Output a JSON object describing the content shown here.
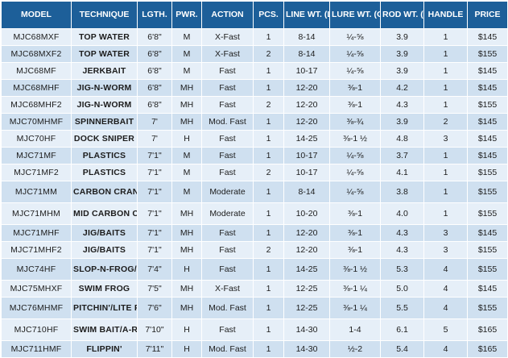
{
  "headers": {
    "model": "MODEL",
    "technique": "TECHNIQUE",
    "length": "LGTH.",
    "power": "PWR.",
    "action": "ACTION",
    "pieces": "PCS.",
    "line_wt": "LINE WT. (LB.)",
    "lure_wt": "LURE WT. (OZ.)",
    "rod_wt": "ROD WT. (OZ.)",
    "handle": "HANDLE",
    "price": "PRICE"
  },
  "rows": [
    {
      "model": "MJC68MXF",
      "technique": "TOP WATER",
      "length": "6'8\"",
      "power": "M",
      "action": "X-Fast",
      "pieces": "1",
      "line_wt": "8-14",
      "lure_wt": "¼-⅝",
      "rod_wt": "3.9",
      "handle": "1",
      "price": "$145"
    },
    {
      "model": "MJC68MXF2",
      "technique": "TOP WATER",
      "length": "6'8\"",
      "power": "M",
      "action": "X-Fast",
      "pieces": "2",
      "line_wt": "8-14",
      "lure_wt": "¼-⅝",
      "rod_wt": "3.9",
      "handle": "1",
      "price": "$155"
    },
    {
      "model": "MJC68MF",
      "technique": "JERKBAIT",
      "length": "6'8\"",
      "power": "M",
      "action": "Fast",
      "pieces": "1",
      "line_wt": "10-17",
      "lure_wt": "¼-⅝",
      "rod_wt": "3.9",
      "handle": "1",
      "price": "$145"
    },
    {
      "model": "MJC68MHF",
      "technique": "JIG-N-WORM",
      "length": "6'8\"",
      "power": "MH",
      "action": "Fast",
      "pieces": "1",
      "line_wt": "12-20",
      "lure_wt": "⅜-1",
      "rod_wt": "4.2",
      "handle": "1",
      "price": "$145"
    },
    {
      "model": "MJC68MHF2",
      "technique": "JIG-N-WORM",
      "length": "6'8\"",
      "power": "MH",
      "action": "Fast",
      "pieces": "2",
      "line_wt": "12-20",
      "lure_wt": "⅜-1",
      "rod_wt": "4.3",
      "handle": "1",
      "price": "$155"
    },
    {
      "model": "MJC70MHMF",
      "technique": "SPINNERBAIT",
      "length": "7'",
      "power": "MH",
      "action": "Mod. Fast",
      "pieces": "1",
      "line_wt": "12-20",
      "lure_wt": "⅜-¾",
      "rod_wt": "3.9",
      "handle": "2",
      "price": "$145"
    },
    {
      "model": "MJC70HF",
      "technique": "DOCK SNIPER",
      "length": "7'",
      "power": "H",
      "action": "Fast",
      "pieces": "1",
      "line_wt": "14-25",
      "lure_wt": "⅜-1 ½",
      "rod_wt": "4.8",
      "handle": "3",
      "price": "$145"
    },
    {
      "model": "MJC71MF",
      "technique": "PLASTICS",
      "length": "7'1\"",
      "power": "M",
      "action": "Fast",
      "pieces": "1",
      "line_wt": "10-17",
      "lure_wt": "¼-⅝",
      "rod_wt": "3.7",
      "handle": "1",
      "price": "$145"
    },
    {
      "model": "MJC71MF2",
      "technique": "PLASTICS",
      "length": "7'1\"",
      "power": "M",
      "action": "Fast",
      "pieces": "2",
      "line_wt": "10-17",
      "lure_wt": "¼-⅝",
      "rod_wt": "4.1",
      "handle": "1",
      "price": "$155"
    },
    {
      "model": "MJC71MM",
      "technique": "CARBON CRANKER",
      "length": "7'1\"",
      "power": "M",
      "action": "Moderate",
      "pieces": "1",
      "line_wt": "8-14",
      "lure_wt": "¼-⅝",
      "rod_wt": "3.8",
      "handle": "1",
      "price": "$155"
    },
    {
      "model": "MJC71MHM",
      "technique": "MID CARBON CRANKER",
      "length": "7'1\"",
      "power": "MH",
      "action": "Moderate",
      "pieces": "1",
      "line_wt": "10-20",
      "lure_wt": "⅜-1",
      "rod_wt": "4.0",
      "handle": "1",
      "price": "$155"
    },
    {
      "model": "MJC71MHF",
      "technique": "JIG/BAITS",
      "length": "7'1\"",
      "power": "MH",
      "action": "Fast",
      "pieces": "1",
      "line_wt": "12-20",
      "lure_wt": "⅜-1",
      "rod_wt": "4.3",
      "handle": "3",
      "price": "$145"
    },
    {
      "model": "MJC71MHF2",
      "technique": "JIG/BAITS",
      "length": "7'1\"",
      "power": "MH",
      "action": "Fast",
      "pieces": "2",
      "line_wt": "12-20",
      "lure_wt": "⅜-1",
      "rod_wt": "4.3",
      "handle": "3",
      "price": "$155"
    },
    {
      "model": "MJC74HF",
      "technique": "SLOP-N-FROG/ SWIM JIG",
      "length": "7'4\"",
      "power": "H",
      "action": "Fast",
      "pieces": "1",
      "line_wt": "14-25",
      "lure_wt": "⅜-1 ½",
      "rod_wt": "5.3",
      "handle": "4",
      "price": "$155"
    },
    {
      "model": "MJC75MHXF",
      "technique": "SWIM FROG",
      "length": "7'5\"",
      "power": "MH",
      "action": "X-Fast",
      "pieces": "1",
      "line_wt": "12-25",
      "lure_wt": "⅜-1 ¼",
      "rod_wt": "5.0",
      "handle": "4",
      "price": "$145"
    },
    {
      "model": "MJC76MHMF",
      "technique": "PITCHIN'/LITE FLIPPIN'",
      "length": "7'6\"",
      "power": "MH",
      "action": "Mod. Fast",
      "pieces": "1",
      "line_wt": "12-25",
      "lure_wt": "⅜-1 ¼",
      "rod_wt": "5.5",
      "handle": "4",
      "price": "$155"
    },
    {
      "model": "MJC710HF",
      "technique": "SWIM BAIT/A-RIG",
      "length": "7'10\"",
      "power": "H",
      "action": "Fast",
      "pieces": "1",
      "line_wt": "14-30",
      "lure_wt": "1-4",
      "rod_wt": "6.1",
      "handle": "5",
      "price": "$165"
    },
    {
      "model": "MJC711HMF",
      "technique": "FLIPPIN'",
      "length": "7'11\"",
      "power": "H",
      "action": "Mod. Fast",
      "pieces": "1",
      "line_wt": "14-30",
      "lure_wt": "½-2",
      "rod_wt": "5.4",
      "handle": "4",
      "price": "$165"
    }
  ]
}
